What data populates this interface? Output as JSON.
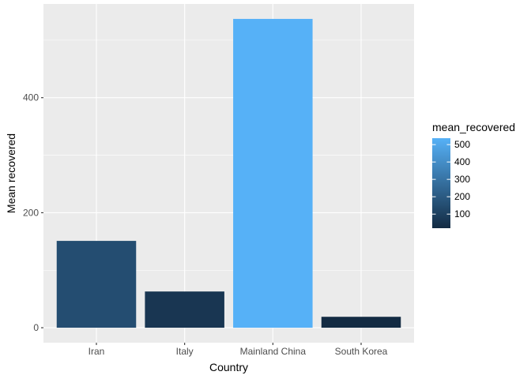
{
  "chart_data": {
    "type": "bar",
    "categories": [
      "Iran",
      "Italy",
      "Mainland China",
      "South Korea"
    ],
    "values": [
      151,
      63,
      537,
      19
    ],
    "xlabel": "Country",
    "ylabel": "Mean recovered",
    "ylim": [
      -26,
      563
    ],
    "yticks": [
      0,
      200,
      400
    ],
    "grid": true,
    "legend": {
      "title": "mean_recovered",
      "position": "right",
      "labels": [
        "500",
        "400",
        "300",
        "200",
        "100"
      ],
      "values": [
        500,
        400,
        300,
        200,
        100
      ],
      "range": [
        19,
        537
      ],
      "color_low": "#132B43",
      "color_high": "#56B1F7"
    },
    "colors": {
      "panel": "#EBEBEB",
      "grid": "#FFFFFF"
    }
  }
}
